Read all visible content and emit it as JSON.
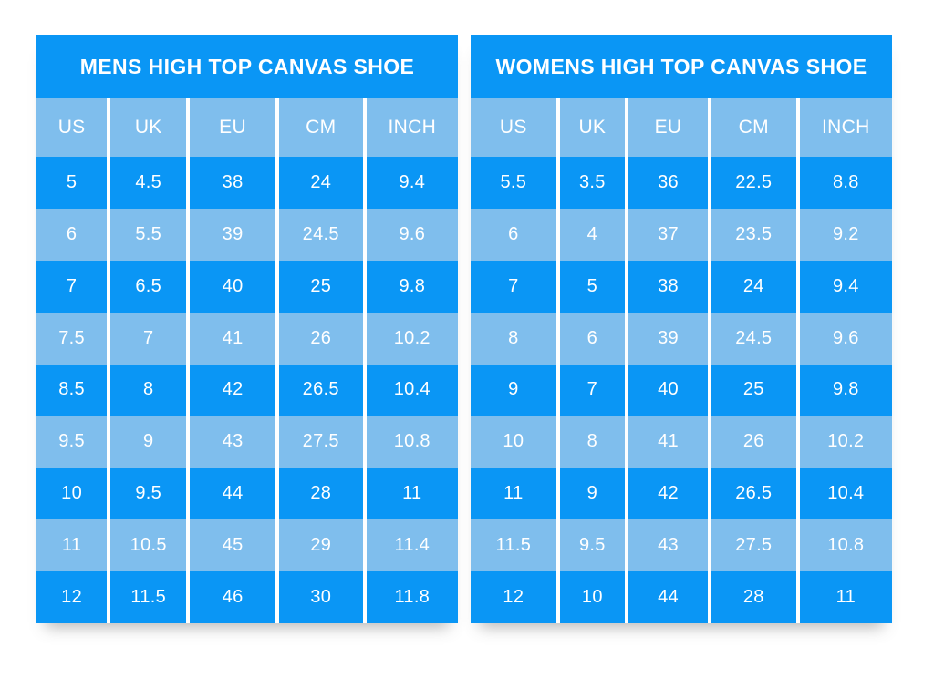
{
  "colors": {
    "dark_blue": "#0a96f5",
    "light_blue": "#7fbeed",
    "text_white": "#ffffff",
    "background": "#ffffff"
  },
  "chart_data": [
    {
      "type": "table",
      "title": "MENS HIGH TOP CANVAS SHOE",
      "columns": [
        "US",
        "UK",
        "EU",
        "CM",
        "INCH"
      ],
      "rows": [
        [
          "5",
          "4.5",
          "38",
          "24",
          "9.4"
        ],
        [
          "6",
          "5.5",
          "39",
          "24.5",
          "9.6"
        ],
        [
          "7",
          "6.5",
          "40",
          "25",
          "9.8"
        ],
        [
          "7.5",
          "7",
          "41",
          "26",
          "10.2"
        ],
        [
          "8.5",
          "8",
          "42",
          "26.5",
          "10.4"
        ],
        [
          "9.5",
          "9",
          "43",
          "27.5",
          "10.8"
        ],
        [
          "10",
          "9.5",
          "44",
          "28",
          "11"
        ],
        [
          "11",
          "10.5",
          "45",
          "29",
          "11.4"
        ],
        [
          "12",
          "11.5",
          "46",
          "30",
          "11.8"
        ]
      ],
      "layout_hints": {
        "striping": "rows alternate dark/light starting dark",
        "separators": "white vertical lines between columns only"
      }
    },
    {
      "type": "table",
      "title": "WOMENS HIGH TOP CANVAS SHOE",
      "columns": [
        "US",
        "UK",
        "EU",
        "CM",
        "INCH"
      ],
      "rows": [
        [
          "5.5",
          "3.5",
          "36",
          "22.5",
          "8.8"
        ],
        [
          "6",
          "4",
          "37",
          "23.5",
          "9.2"
        ],
        [
          "7",
          "5",
          "38",
          "24",
          "9.4"
        ],
        [
          "8",
          "6",
          "39",
          "24.5",
          "9.6"
        ],
        [
          "9",
          "7",
          "40",
          "25",
          "9.8"
        ],
        [
          "10",
          "8",
          "41",
          "26",
          "10.2"
        ],
        [
          "11",
          "9",
          "42",
          "26.5",
          "10.4"
        ],
        [
          "11.5",
          "9.5",
          "43",
          "27.5",
          "10.8"
        ],
        [
          "12",
          "10",
          "44",
          "28",
          "11"
        ]
      ],
      "layout_hints": {
        "striping": "rows alternate dark/light starting dark",
        "separators": "white vertical lines between columns only"
      }
    }
  ]
}
